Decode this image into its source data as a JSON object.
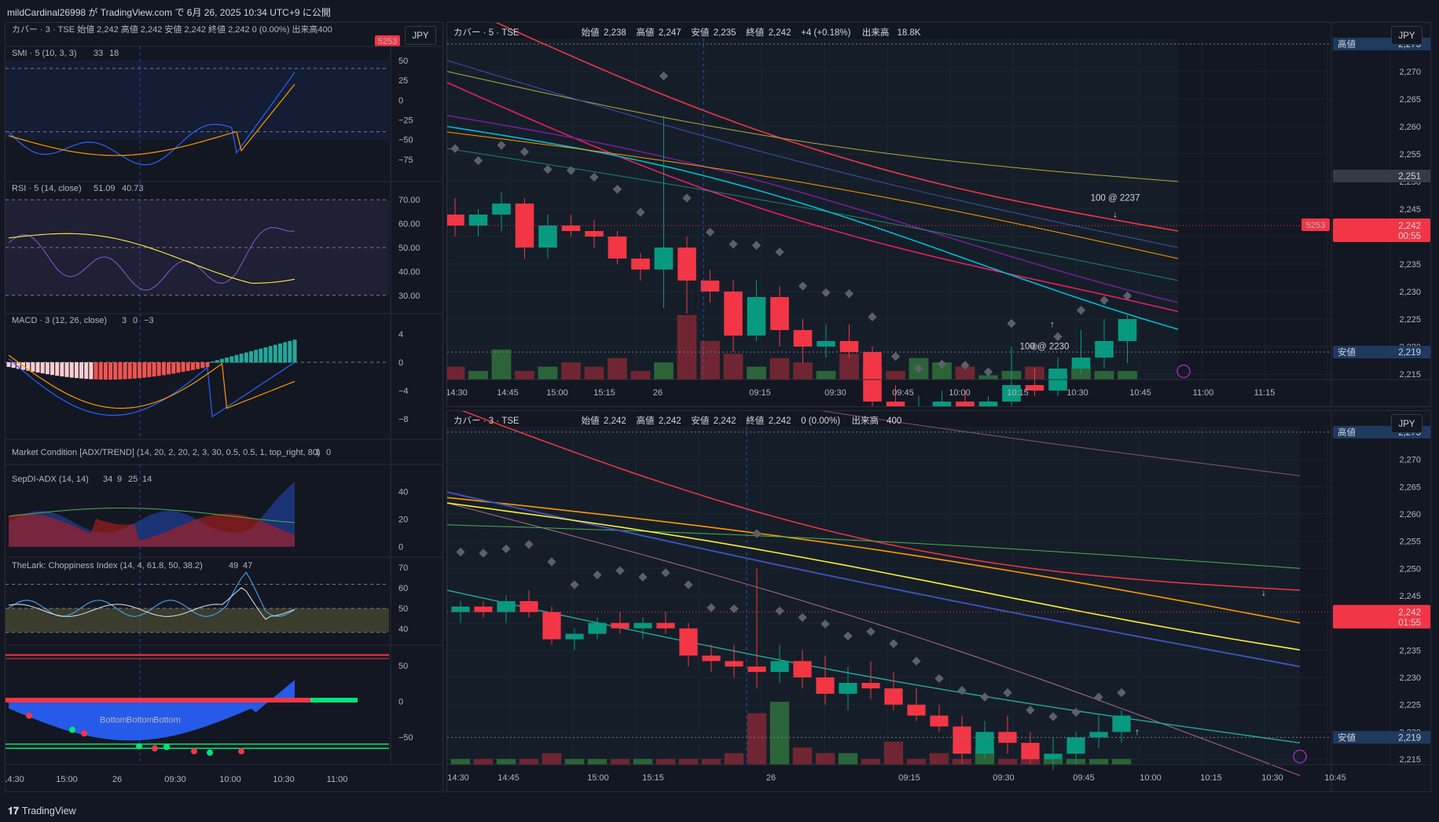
{
  "header": {
    "publish_text": "mildCardinal26998 が TradingView.com で 6月 26, 2025 10:34 UTC+9 に公開"
  },
  "footer": {
    "logo_text": "TradingView"
  },
  "currency_button": "JPY",
  "left_panel": {
    "legend": {
      "symbol": "カバー · 3 · TSE",
      "open_label": "始値",
      "open": "2,242",
      "high_label": "高値",
      "high": "2,242",
      "low_label": "安値",
      "low": "2,242",
      "close_label": "終値",
      "close": "2,242",
      "change": "0 (0.00%)",
      "volume_label": "出来高",
      "volume": "400"
    },
    "price_badge": "5253",
    "indicators": [
      {
        "name": "SMI · 5 (10, 3, 3)",
        "v1": "33",
        "v2": "18",
        "ticks": [
          "50",
          "25",
          "0",
          "−25",
          "−50",
          "−75"
        ]
      },
      {
        "name": "RSI · 5 (14, close)",
        "v1": "51.09",
        "v2": "40.73",
        "ticks": [
          "70.00",
          "60.00",
          "50.00",
          "40.00",
          "30.00"
        ]
      },
      {
        "name": "MACD · 3 (12, 26, close)",
        "v1": "3",
        "v2": "0",
        "v3": "−3",
        "ticks": [
          "4",
          "0",
          "−4",
          "−8"
        ]
      },
      {
        "name": "Market Condition [ADX/TREND] (14, 20, 2, 20, 2, 3, 30, 0.5, 0.5, 1, top_right, 80)",
        "v1": "1",
        "v2": "0"
      },
      {
        "name": "SepDI-ADX (14, 14)",
        "v1": "34",
        "v2": "9",
        "v3": "25",
        "v4": "14",
        "ticks": [
          "40",
          "20",
          "0"
        ]
      },
      {
        "name": "TheLark: Choppiness Index (14, 4, 61.8, 50, 38.2)",
        "v1": "49",
        "v2": "47",
        "ticks": [
          "70",
          "60",
          "50",
          "40"
        ]
      },
      {
        "name": "",
        "ticks": [
          "50",
          "0",
          "−50"
        ],
        "labels": [
          "Bottom",
          "Bottom",
          "Bottom"
        ]
      }
    ],
    "time_axis": [
      "14:30",
      "15:00",
      "26",
      "09:30",
      "10:00",
      "10:30",
      "11:00"
    ]
  },
  "top_chart": {
    "legend": {
      "symbol": "カバー · 5 · TSE",
      "open_label": "始値",
      "open": "2,238",
      "high_label": "高値",
      "high": "2,247",
      "low_label": "安値",
      "low": "2,235",
      "close_label": "終値",
      "close": "2,242",
      "change": "+4 (+0.18%)",
      "volume_label": "出来高",
      "volume": "18.8K"
    },
    "price_axis": [
      "2,270",
      "2,265",
      "2,260",
      "2,255",
      "2,250",
      "2,245",
      "2,240",
      "2,235",
      "2,230",
      "2,225",
      "2,220",
      "2,215"
    ],
    "high_label": {
      "text": "高値",
      "value": "2,275"
    },
    "low_label": {
      "text": "安値",
      "value": "2,219"
    },
    "level_2251": "2,251",
    "price_badge": "5253",
    "last_price": "2,242",
    "countdown": "00:55",
    "trade_labels": [
      "100 @ 2237",
      "100 @ 2230"
    ],
    "time_axis": [
      "14:30",
      "14:45",
      "15:00",
      "15:15",
      "26",
      "09:15",
      "09:30",
      "09:45",
      "10:00",
      "10:15",
      "10:30",
      "10:45",
      "11:00",
      "11:15"
    ]
  },
  "bottom_chart": {
    "legend": {
      "symbol": "カバー · 3 · TSE",
      "open_label": "始値",
      "open": "2,242",
      "high_label": "高値",
      "high": "2,242",
      "low_label": "安値",
      "low": "2,242",
      "close_label": "終値",
      "close": "2,242",
      "change": "0 (0.00%)",
      "volume_label": "出来高",
      "volume": "400"
    },
    "price_axis": [
      "2,270",
      "2,265",
      "2,260",
      "2,255",
      "2,250",
      "2,245",
      "2,240",
      "2,235",
      "2,230",
      "2,225",
      "2,220",
      "2,215"
    ],
    "high_label": {
      "text": "高値",
      "value": "2,275"
    },
    "low_label": {
      "text": "安値",
      "value": "2,219"
    },
    "last_price": "2,242",
    "countdown": "01:55",
    "time_axis": [
      "14:30",
      "14:45",
      "15:00",
      "15:15",
      "26",
      "09:15",
      "09:30",
      "09:45",
      "10:00",
      "10:15",
      "10:30",
      "10:45"
    ]
  },
  "chart_data": [
    {
      "type": "candlestick",
      "panel": "top",
      "interval": "5",
      "candles": [
        [
          2244,
          2247,
          2240,
          2242
        ],
        [
          2242,
          2245,
          2240,
          2244
        ],
        [
          2244,
          2248,
          2241,
          2246
        ],
        [
          2246,
          2247,
          2236,
          2238
        ],
        [
          2238,
          2244,
          2236,
          2242
        ],
        [
          2242,
          2244,
          2240,
          2241
        ],
        [
          2241,
          2243,
          2238,
          2240
        ],
        [
          2240,
          2241,
          2235,
          2236
        ],
        [
          2236,
          2237,
          2232,
          2234
        ],
        [
          2234,
          2262,
          2227,
          2238
        ],
        [
          2238,
          2240,
          2226,
          2232
        ],
        [
          2232,
          2234,
          2228,
          2230
        ],
        [
          2230,
          2232,
          2219,
          2222
        ],
        [
          2222,
          2232,
          2221,
          2229
        ],
        [
          2229,
          2231,
          2220,
          2223
        ],
        [
          2223,
          2225,
          2217,
          2220
        ],
        [
          2220,
          2224,
          2218,
          2221
        ],
        [
          2221,
          2224,
          2218,
          2219
        ],
        [
          2219,
          2220,
          2208,
          2210
        ],
        [
          2210,
          2213,
          2203,
          2205
        ],
        [
          2205,
          2211,
          2201,
          2208
        ],
        [
          2208,
          2212,
          2205,
          2210
        ],
        [
          2210,
          2212,
          2207,
          2208
        ],
        [
          2208,
          2211,
          2204,
          2210
        ],
        [
          2210,
          2220,
          2209,
          2213
        ],
        [
          2213,
          2216,
          2211,
          2212
        ],
        [
          2212,
          2218,
          2211,
          2216
        ],
        [
          2216,
          2223,
          2215,
          2218
        ],
        [
          2218,
          2225,
          2216,
          2221
        ],
        [
          2221,
          2226,
          2217,
          2225
        ]
      ],
      "volume": [
        3,
        2,
        7,
        2,
        3,
        4,
        3,
        5,
        2,
        4,
        15,
        9,
        6,
        3,
        5,
        4,
        2,
        6,
        3,
        2,
        5,
        4,
        3,
        1,
        2,
        3,
        1,
        3,
        2,
        2
      ],
      "ylim": [
        2214,
        2276
      ]
    },
    {
      "type": "candlestick",
      "panel": "bottom",
      "interval": "3",
      "candles": [
        [
          2242,
          2244,
          2240,
          2243
        ],
        [
          2243,
          2244,
          2241,
          2242
        ],
        [
          2242,
          2245,
          2240,
          2244
        ],
        [
          2244,
          2246,
          2241,
          2242
        ],
        [
          2242,
          2243,
          2236,
          2237
        ],
        [
          2237,
          2239,
          2235,
          2238
        ],
        [
          2238,
          2241,
          2237,
          2240
        ],
        [
          2240,
          2242,
          2238,
          2239
        ],
        [
          2239,
          2241,
          2237,
          2240
        ],
        [
          2240,
          2242,
          2238,
          2239
        ],
        [
          2239,
          2240,
          2232,
          2234
        ],
        [
          2234,
          2236,
          2231,
          2233
        ],
        [
          2233,
          2236,
          2230,
          2232
        ],
        [
          2232,
          2250,
          2228,
          2231
        ],
        [
          2231,
          2236,
          2229,
          2233
        ],
        [
          2233,
          2235,
          2228,
          2230
        ],
        [
          2230,
          2234,
          2225,
          2227
        ],
        [
          2227,
          2232,
          2224,
          2229
        ],
        [
          2229,
          2233,
          2226,
          2228
        ],
        [
          2228,
          2231,
          2224,
          2225
        ],
        [
          2225,
          2228,
          2222,
          2223
        ],
        [
          2223,
          2225,
          2220,
          2221
        ],
        [
          2221,
          2223,
          2214,
          2216
        ],
        [
          2216,
          2222,
          2215,
          2220
        ],
        [
          2220,
          2223,
          2216,
          2218
        ],
        [
          2218,
          2220,
          2214,
          2215
        ],
        [
          2215,
          2219,
          2213,
          2216
        ],
        [
          2216,
          2220,
          2214,
          2219
        ],
        [
          2219,
          2223,
          2217,
          2220
        ],
        [
          2220,
          2224,
          2218,
          2223
        ]
      ],
      "volume": [
        1,
        1,
        1,
        1,
        2,
        1,
        1,
        1,
        1,
        1,
        1,
        1,
        2,
        9,
        11,
        3,
        2,
        2,
        1,
        4,
        1,
        2,
        1,
        3,
        1,
        1,
        1,
        1,
        1,
        1
      ],
      "ylim": [
        2214,
        2276
      ]
    }
  ]
}
